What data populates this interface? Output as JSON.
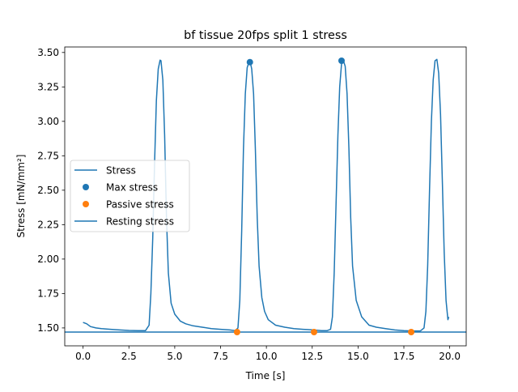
{
  "chart_data": {
    "type": "line",
    "title": "bf tissue 20fps split 1 stress",
    "xlabel": "Time [s]",
    "ylabel": "Stress [mN/mm²]",
    "xlim": [
      -1.0,
      20.9
    ],
    "ylim": [
      1.37,
      3.54
    ],
    "xticks": [
      0.0,
      2.5,
      5.0,
      7.5,
      10.0,
      12.5,
      15.0,
      17.5,
      20.0
    ],
    "xtick_labels": [
      "0.0",
      "2.5",
      "5.0",
      "7.5",
      "10.0",
      "12.5",
      "15.0",
      "17.5",
      "20.0"
    ],
    "yticks": [
      1.5,
      1.75,
      2.0,
      2.25,
      2.5,
      2.75,
      3.0,
      3.25,
      3.5
    ],
    "ytick_labels": [
      "1.50",
      "1.75",
      "2.00",
      "2.25",
      "2.50",
      "2.75",
      "3.00",
      "3.25",
      "3.50"
    ],
    "grid": false,
    "legend_position": "center-left",
    "colors": {
      "stress": "#1f77b4",
      "max": "#1f77b4",
      "passive": "#ff7f0e",
      "resting": "#1f77b4"
    },
    "series": [
      {
        "name": "Stress",
        "kind": "line",
        "x": [
          0.0,
          0.2,
          0.4,
          0.7,
          1.0,
          1.5,
          2.0,
          2.5,
          3.0,
          3.4,
          3.6,
          3.7,
          3.8,
          3.9,
          4.0,
          4.1,
          4.2,
          4.25,
          4.35,
          4.45,
          4.55,
          4.65,
          4.8,
          5.0,
          5.3,
          5.6,
          6.0,
          6.5,
          7.0,
          7.5,
          8.0,
          8.3,
          8.45,
          8.55,
          8.65,
          8.75,
          8.85,
          8.95,
          9.05,
          9.12,
          9.2,
          9.3,
          9.4,
          9.5,
          9.6,
          9.75,
          9.9,
          10.1,
          10.5,
          11.0,
          11.5,
          12.0,
          12.6,
          13.0,
          13.3,
          13.5,
          13.6,
          13.7,
          13.8,
          13.9,
          14.0,
          14.1,
          14.2,
          14.3,
          14.4,
          14.5,
          14.6,
          14.7,
          14.9,
          15.2,
          15.6,
          16.0,
          16.5,
          17.0,
          17.5,
          18.0,
          18.4,
          18.6,
          18.7,
          18.8,
          18.9,
          19.0,
          19.1,
          19.2,
          19.3,
          19.4,
          19.5,
          19.6,
          19.7,
          19.8,
          19.9,
          19.95
        ],
        "y": [
          1.54,
          1.53,
          1.51,
          1.5,
          1.495,
          1.49,
          1.485,
          1.482,
          1.48,
          1.48,
          1.52,
          1.75,
          2.15,
          2.7,
          3.15,
          3.38,
          3.445,
          3.44,
          3.3,
          2.9,
          2.3,
          1.9,
          1.68,
          1.6,
          1.55,
          1.53,
          1.515,
          1.505,
          1.495,
          1.49,
          1.485,
          1.48,
          1.5,
          1.7,
          2.2,
          2.8,
          3.2,
          3.39,
          3.43,
          3.43,
          3.38,
          3.2,
          2.8,
          2.3,
          1.95,
          1.72,
          1.62,
          1.56,
          1.52,
          1.505,
          1.495,
          1.49,
          1.485,
          1.48,
          1.48,
          1.49,
          1.58,
          1.9,
          2.4,
          2.9,
          3.25,
          3.42,
          3.44,
          3.4,
          3.2,
          2.8,
          2.3,
          1.95,
          1.7,
          1.58,
          1.52,
          1.505,
          1.495,
          1.485,
          1.48,
          1.478,
          1.478,
          1.5,
          1.62,
          1.95,
          2.5,
          3.0,
          3.3,
          3.44,
          3.45,
          3.35,
          3.05,
          2.55,
          2.05,
          1.7,
          1.56,
          1.58
        ]
      },
      {
        "name": "Max stress",
        "kind": "scatter",
        "x": [
          9.1,
          14.1
        ],
        "y": [
          3.43,
          3.44
        ]
      },
      {
        "name": "Passive stress",
        "kind": "scatter",
        "x": [
          8.4,
          12.6,
          17.9
        ],
        "y": [
          1.47,
          1.47,
          1.47
        ]
      },
      {
        "name": "Resting stress",
        "kind": "hline",
        "y": 1.47
      }
    ]
  }
}
